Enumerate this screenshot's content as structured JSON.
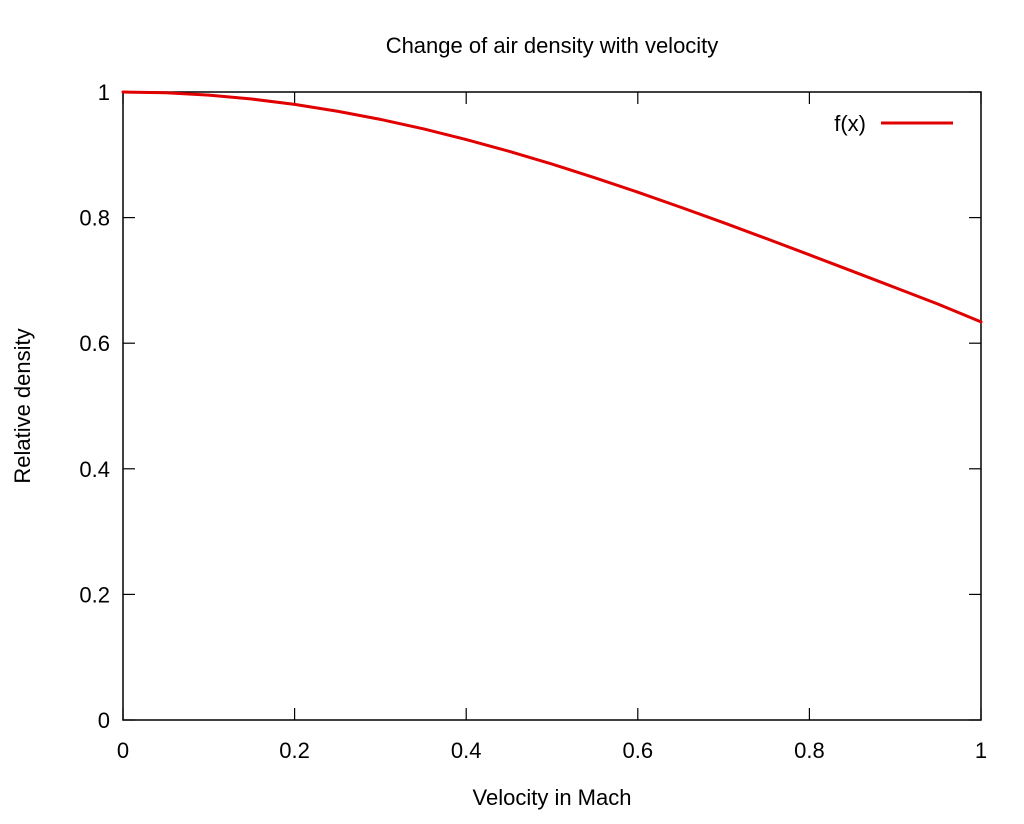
{
  "chart_data": {
    "type": "line",
    "title": "Change of air density with velocity",
    "xlabel": "Velocity in Mach",
    "ylabel": "Relative density",
    "xlim": [
      0,
      1
    ],
    "ylim": [
      0,
      1
    ],
    "grid": false,
    "legend_placement": "top-right",
    "x_ticks": [
      {
        "value": 0,
        "label": "0"
      },
      {
        "value": 0.2,
        "label": "0.2"
      },
      {
        "value": 0.4,
        "label": "0.4"
      },
      {
        "value": 0.6,
        "label": "0.6"
      },
      {
        "value": 0.8,
        "label": "0.8"
      },
      {
        "value": 1,
        "label": "1"
      }
    ],
    "y_ticks": [
      {
        "value": 0,
        "label": "0"
      },
      {
        "value": 0.2,
        "label": "0.2"
      },
      {
        "value": 0.4,
        "label": "0.4"
      },
      {
        "value": 0.6,
        "label": "0.6"
      },
      {
        "value": 0.8,
        "label": "0.8"
      },
      {
        "value": 1,
        "label": "1"
      }
    ],
    "series": [
      {
        "name": "f(x)",
        "color": "#e00000",
        "x": [
          0,
          0.05,
          0.1,
          0.15,
          0.2,
          0.25,
          0.3,
          0.35,
          0.4,
          0.45,
          0.5,
          0.55,
          0.6,
          0.65,
          0.7,
          0.75,
          0.8,
          0.85,
          0.9,
          0.95,
          1
        ],
        "y": [
          1,
          0.9988,
          0.995,
          0.9888,
          0.9803,
          0.9694,
          0.9564,
          0.9414,
          0.9243,
          0.9055,
          0.8852,
          0.8634,
          0.8405,
          0.8165,
          0.7919,
          0.7665,
          0.7407,
          0.7147,
          0.6885,
          0.6622,
          0.6339
        ]
      }
    ]
  }
}
